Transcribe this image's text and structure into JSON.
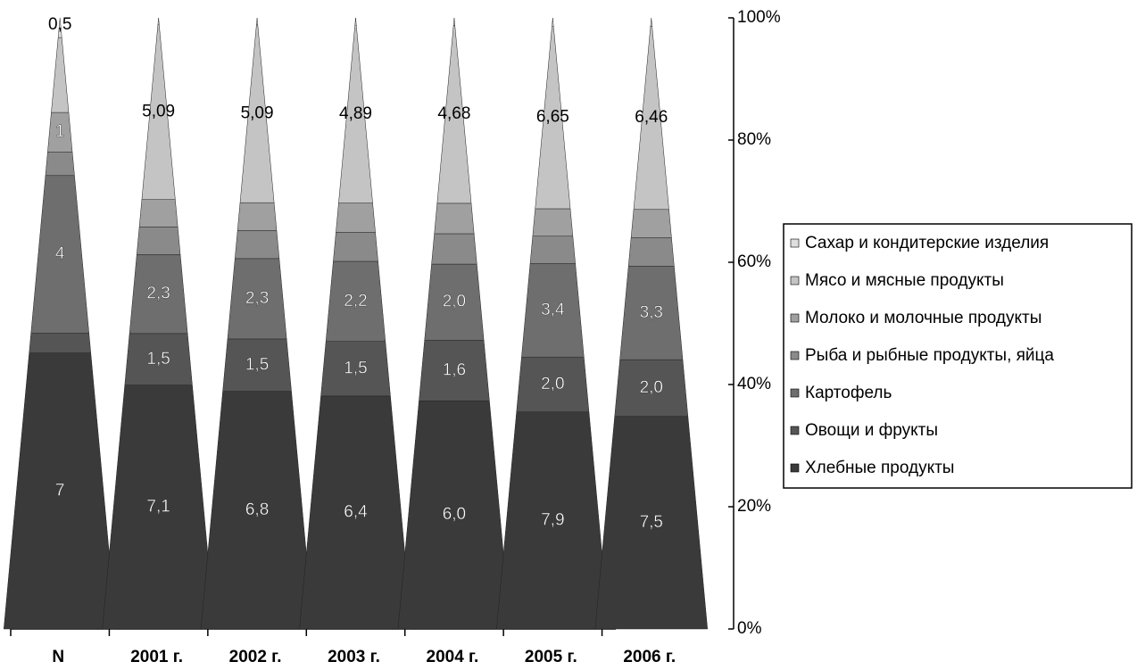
{
  "chart_data": {
    "type": "pyramid100",
    "categories": [
      "N",
      "2001 г.",
      "2002 г.",
      "2003 г.",
      "2004 г.",
      "2005 г.",
      "2006 г."
    ],
    "series": [
      {
        "name": "Хлебные продукты",
        "color": "#3a3a3a",
        "values": [
          7,
          7.1,
          6.8,
          6.4,
          6.0,
          7.9,
          7.5
        ],
        "value_labels": [
          "7",
          "7,1",
          "6,8",
          "6,4",
          "6,0",
          "7,9",
          "7,5"
        ]
      },
      {
        "name": "Овощи и фрукты",
        "color": "#555555",
        "values": [
          0.5,
          1.5,
          1.5,
          1.5,
          1.6,
          2.0,
          2.0
        ],
        "value_labels": [
          null,
          "1,5",
          "1,5",
          "1,5",
          "1,6",
          "2,0",
          "2,0"
        ]
      },
      {
        "name": "Картофель",
        "color": "#6e6e6e",
        "values": [
          4,
          2.3,
          2.3,
          2.2,
          2.0,
          3.4,
          3.3
        ],
        "value_labels": [
          "4",
          "2,3",
          "2,3",
          "2,2",
          "2,0",
          "3,4",
          "3,3"
        ]
      },
      {
        "name": "Рыба и рыбные продукты, яйца",
        "color": "#8a8a8a",
        "values": [
          0.6,
          0.8,
          0.8,
          0.8,
          0.8,
          1.0,
          1.0
        ]
      },
      {
        "name": "Молоко и молочные продукты",
        "color": "#a0a0a0",
        "values": [
          1,
          0.8,
          0.8,
          0.8,
          0.8,
          1.0,
          1.0
        ],
        "value_labels": [
          "1",
          null,
          null,
          null,
          null,
          null,
          null
        ]
      },
      {
        "name": "Мясо и мясные продукты",
        "color": "#c4c4c4",
        "values": [
          1.9,
          5.09,
          5.09,
          4.89,
          4.68,
          6.65,
          6.46
        ],
        "value_labels": [
          null,
          "5,09",
          "5,09",
          "4,89",
          "4,68",
          "6,65",
          "6,46"
        ]
      },
      {
        "name": "Сахар и кондитерские изделия",
        "color": "#dedede",
        "values": [
          0.5,
          0.2,
          0.2,
          0.2,
          0.2,
          0.3,
          0.3
        ],
        "value_labels": [
          "0,5",
          null,
          null,
          null,
          null,
          null,
          null
        ]
      }
    ],
    "ylim": [
      0,
      100
    ],
    "yticks": [
      {
        "value": 0,
        "label": "0%"
      },
      {
        "value": 20,
        "label": "20%"
      },
      {
        "value": 40,
        "label": "40%"
      },
      {
        "value": 60,
        "label": "60%"
      },
      {
        "value": 80,
        "label": "80%"
      },
      {
        "value": 100,
        "label": "100%"
      }
    ],
    "legend": "right"
  }
}
